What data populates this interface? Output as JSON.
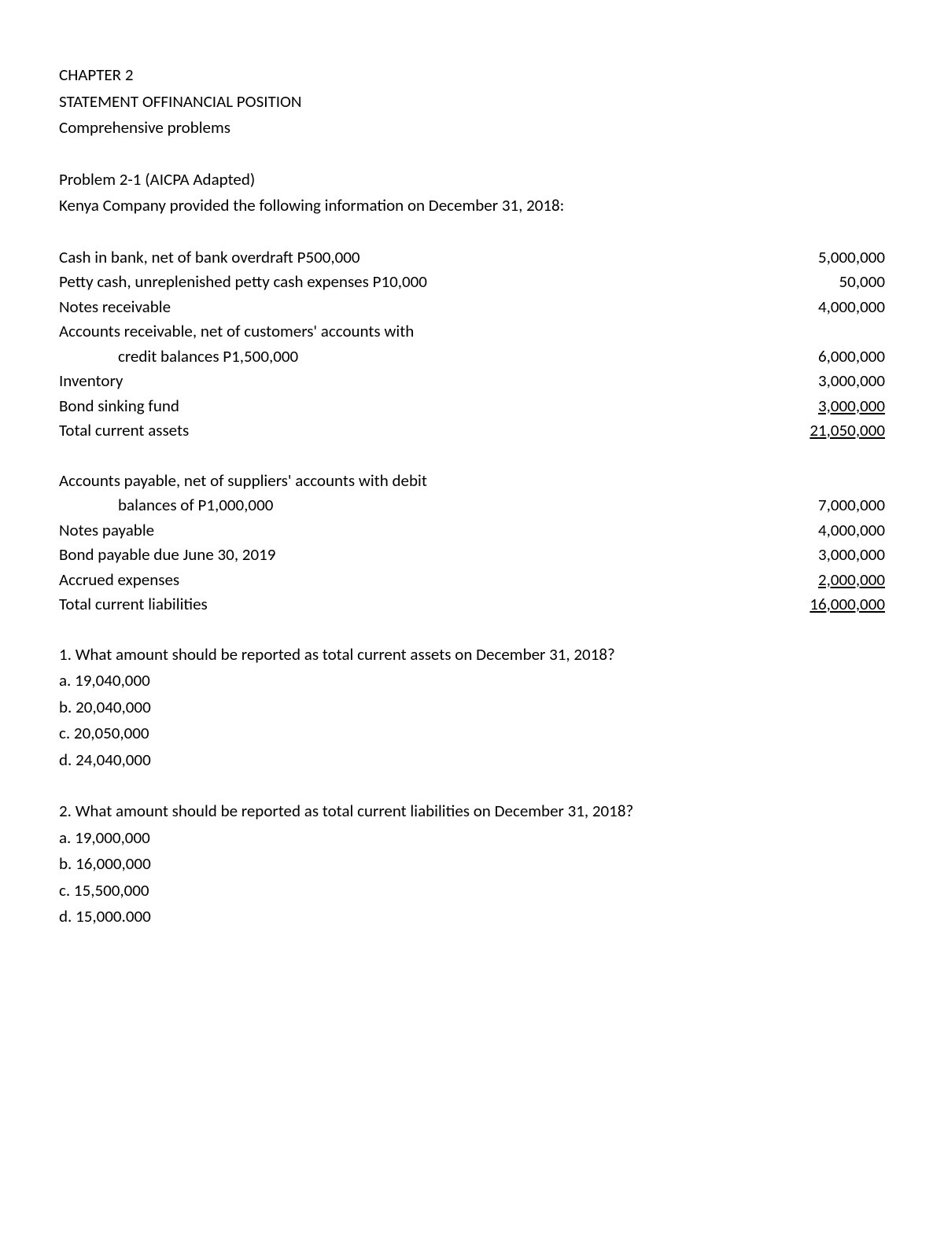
{
  "header": {
    "chapter": "CHAPTER 2",
    "title": "STATEMENT OFFINANCIAL POSITION",
    "subtitle": "Comprehensive problems"
  },
  "problem": {
    "number": "Problem 2-1 (AICPA Adapted)",
    "intro": "Kenya Company provided the following information on December 31, 2018:"
  },
  "assets": {
    "rows": [
      {
        "label": "Cash in bank, net of bank overdraft P500,000",
        "value": "5,000,000",
        "indent": false,
        "underline": false
      },
      {
        "label": "Petty cash, unreplenished petty cash expenses P10,000",
        "value": "50,000",
        "indent": false,
        "underline": false
      },
      {
        "label": "Notes receivable",
        "value": "4,000,000",
        "indent": false,
        "underline": false
      },
      {
        "label": "Accounts receivable, net of customers' accounts with",
        "value": "",
        "indent": false,
        "underline": false
      },
      {
        "label": "credit balances P1,500,000",
        "value": "6,000,000",
        "indent": true,
        "underline": false
      },
      {
        "label": "Inventory",
        "value": "3,000,000",
        "indent": false,
        "underline": false
      },
      {
        "label": "Bond sinking fund",
        "value": "3,000,000",
        "indent": false,
        "underline": true
      },
      {
        "label": "Total current assets",
        "value": "21,050,000",
        "indent": false,
        "underline": true
      }
    ]
  },
  "liabilities": {
    "rows": [
      {
        "label": "Accounts payable, net of suppliers' accounts with debit",
        "value": "",
        "indent": false,
        "underline": false
      },
      {
        "label": "balances of P1,000,000",
        "value": "7,000,000",
        "indent": true,
        "underline": false
      },
      {
        "label": "Notes payable",
        "value": "4,000,000",
        "indent": false,
        "underline": false
      },
      {
        "label": "Bond payable due June 30, 2019",
        "value": "3,000,000",
        "indent": false,
        "underline": false
      },
      {
        "label": "Accrued expenses",
        "value": "2,000,000",
        "indent": false,
        "underline": true
      },
      {
        "label": "Total current liabilities",
        "value": "16,000,000",
        "indent": false,
        "underline": true
      }
    ]
  },
  "questions": [
    {
      "q": "1. What amount should be reported as total current assets on December 31, 2018?",
      "options": [
        "a. 19,040,000",
        "b. 20,040,000",
        "c. 20,050,000",
        "d. 24,040,000"
      ]
    },
    {
      "q": "2. What amount should be reported as total current liabilities on December 31, 2018?",
      "options": [
        "a. 19,000,000",
        "b. 16,000,000",
        "c. 15,500,000",
        "d. 15,000.000"
      ]
    }
  ]
}
